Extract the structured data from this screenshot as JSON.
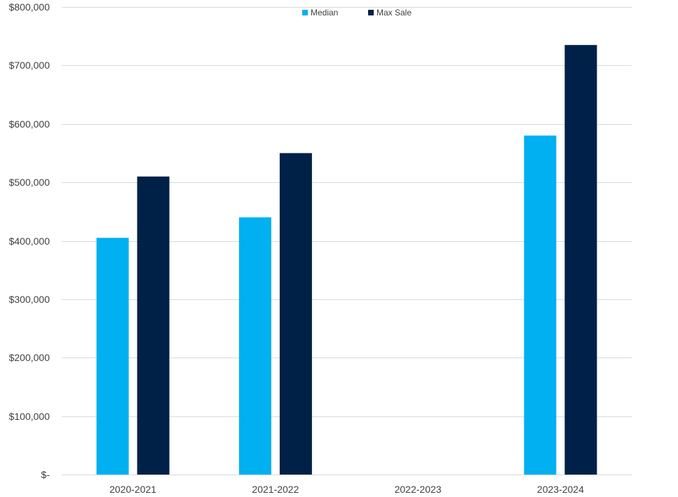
{
  "chart_data": {
    "type": "bar",
    "title": "",
    "xlabel": "",
    "ylabel": "",
    "categories": [
      "2020-2021",
      "2021-2022",
      "2022-2023",
      "2023-2024"
    ],
    "series": [
      {
        "name": "Median",
        "color": "#00B0F0",
        "values": [
          405000,
          440000,
          null,
          580000
        ]
      },
      {
        "name": "Max Sale",
        "color": "#002147",
        "values": [
          510000,
          550000,
          null,
          735000
        ]
      }
    ],
    "ylim": [
      0,
      800000
    ],
    "y_ticks": [
      0,
      100000,
      200000,
      300000,
      400000,
      500000,
      600000,
      700000,
      800000
    ],
    "y_tick_labels": [
      "$-",
      "$100,000",
      "$200,000",
      "$300,000",
      "$400,000",
      "$500,000",
      "$600,000",
      "$700,000",
      "$800,000"
    ],
    "grid": true,
    "legend_position": "top-center",
    "colors": {
      "gridline": "#D9D9D9",
      "axis_text": "#404040"
    }
  }
}
